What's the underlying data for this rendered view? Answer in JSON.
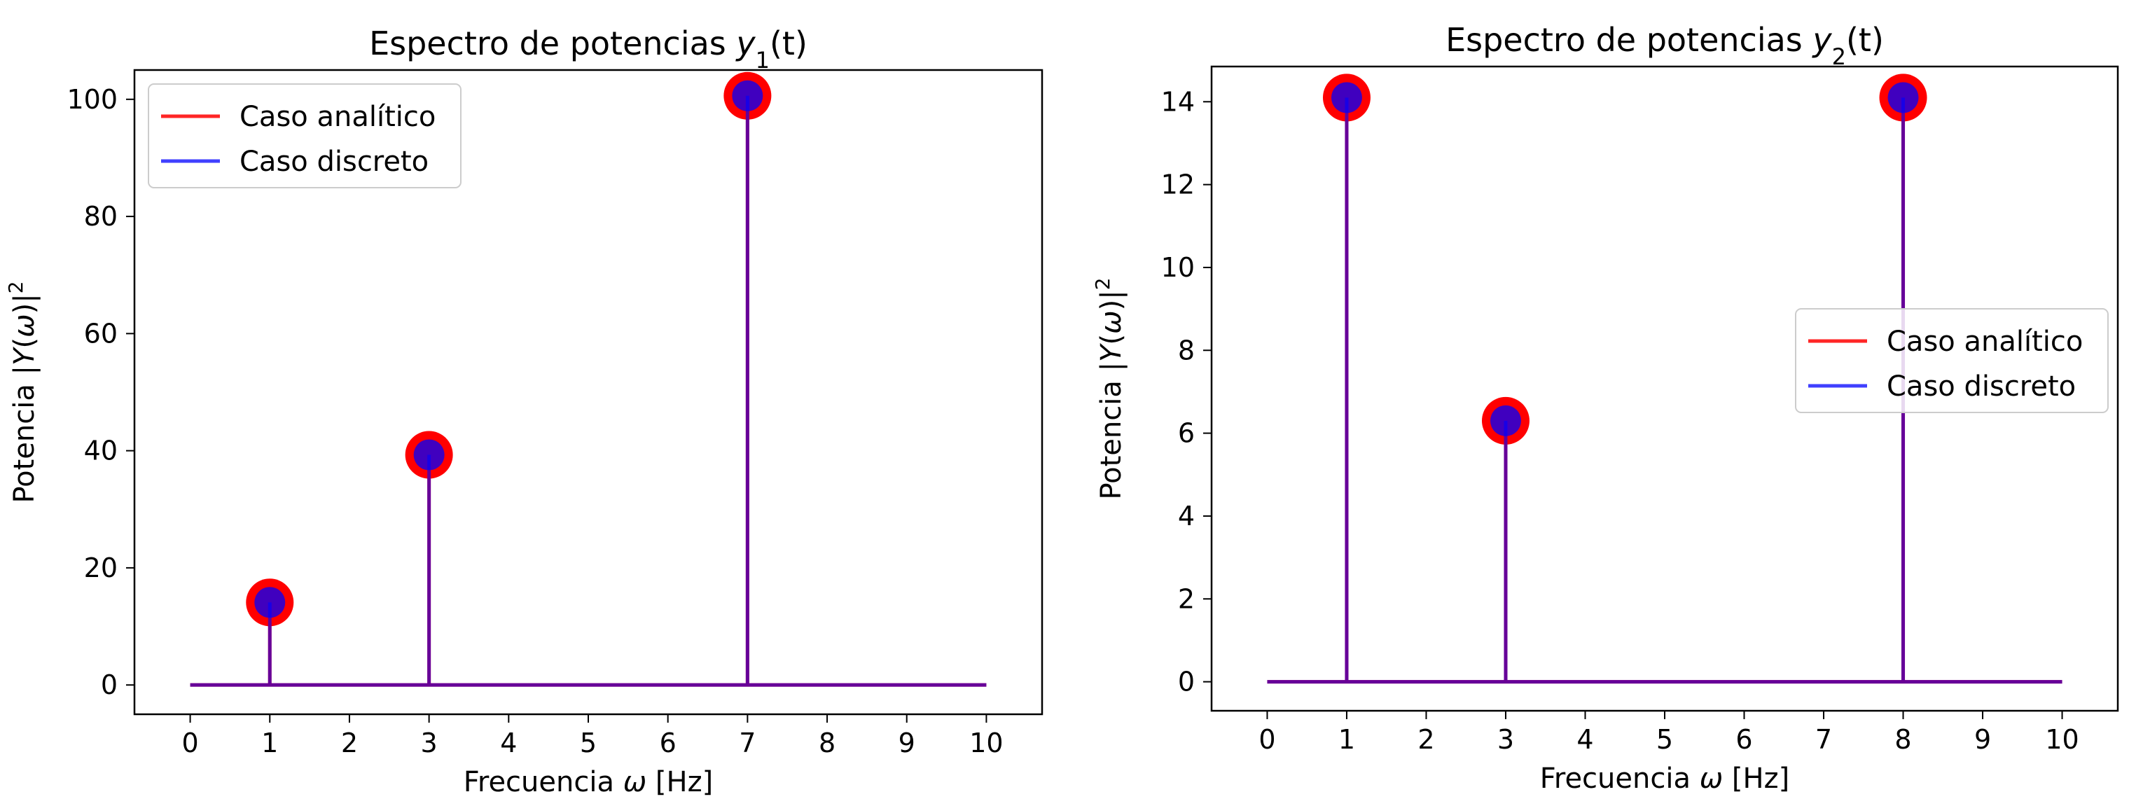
{
  "colors": {
    "analitico": "#ff0000",
    "discreto": "#0000ff",
    "stem_overlap": "#6a0dad",
    "marker_overlap": "#5500aa"
  },
  "chart_data": [
    {
      "type": "stem",
      "title_main": "Espectro de potencias ",
      "title_var": "y",
      "title_sub": "1",
      "title_suffix": "(t)",
      "xlabel_pre": "Frecuencia ",
      "xlabel_var": "ω",
      "xlabel_post": " [Hz]",
      "ylabel_pre": "Potencia |",
      "ylabel_var": "Y",
      "ylabel_mid": "(",
      "ylabel_var2": "ω",
      "ylabel_post": ")|",
      "ylabel_sup": "2",
      "xlim": [
        -0.7,
        10.7
      ],
      "ylim": [
        -5,
        105
      ],
      "xticks": [
        0,
        1,
        2,
        3,
        4,
        5,
        6,
        7,
        8,
        9,
        10
      ],
      "yticks": [
        0,
        20,
        40,
        60,
        80,
        100
      ],
      "baseline": [
        0,
        10
      ],
      "legend": {
        "position": "upper-left",
        "entries": [
          "Caso analítico",
          "Caso discreto"
        ]
      },
      "series": [
        {
          "name": "Caso analítico",
          "x": [
            1,
            3,
            7
          ],
          "y": [
            14.1,
            39.3,
            100.6
          ]
        },
        {
          "name": "Caso discreto",
          "x": [
            1,
            3,
            7
          ],
          "y": [
            14.1,
            39.3,
            100.6
          ]
        }
      ]
    },
    {
      "type": "stem",
      "title_main": "Espectro de potencias ",
      "title_var": "y",
      "title_sub": "2",
      "title_suffix": "(t)",
      "xlabel_pre": "Frecuencia ",
      "xlabel_var": "ω",
      "xlabel_post": " [Hz]",
      "ylabel_pre": "Potencia |",
      "ylabel_var": "Y",
      "ylabel_mid": "(",
      "ylabel_var2": "ω",
      "ylabel_post": ")|",
      "ylabel_sup": "2",
      "xlim": [
        -0.7,
        10.7
      ],
      "ylim": [
        -0.7,
        14.85
      ],
      "xticks": [
        0,
        1,
        2,
        3,
        4,
        5,
        6,
        7,
        8,
        9,
        10
      ],
      "yticks": [
        0,
        2,
        4,
        6,
        8,
        10,
        12,
        14
      ],
      "baseline": [
        0,
        10
      ],
      "legend": {
        "position": "center-right",
        "entries": [
          "Caso analítico",
          "Caso discreto"
        ]
      },
      "series": [
        {
          "name": "Caso analítico",
          "x": [
            1,
            3,
            8
          ],
          "y": [
            14.1,
            6.3,
            14.1
          ]
        },
        {
          "name": "Caso discreto",
          "x": [
            1,
            3,
            8
          ],
          "y": [
            14.1,
            6.3,
            14.1
          ]
        }
      ]
    }
  ]
}
